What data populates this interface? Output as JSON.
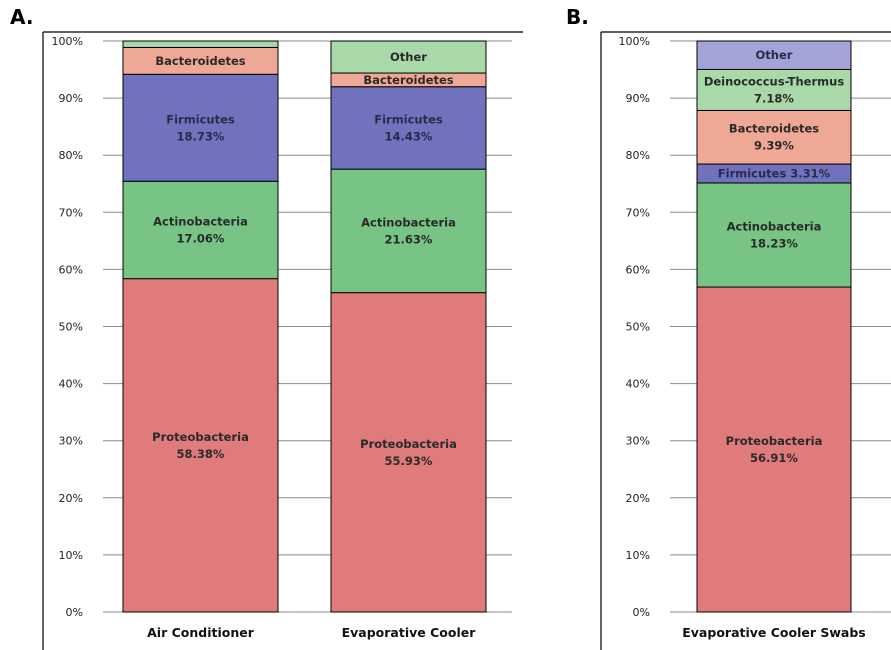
{
  "chart_data": [
    {
      "type": "bar",
      "stacked": true,
      "panel_label": "A.",
      "categories": [
        "Air Conditioner",
        "Evaporative Cooler"
      ],
      "yticks": [
        "0%",
        "10%",
        "20%",
        "30%",
        "40%",
        "50%",
        "60%",
        "70%",
        "80%",
        "90%",
        "100%"
      ],
      "ylim": [
        0,
        100
      ],
      "grid": true,
      "series": [
        {
          "name": "Proteobacteria",
          "color": "#e07b7b",
          "values": [
            58.38,
            55.93
          ],
          "labels": [
            [
              "Proteobacteria",
              "58.38%"
            ],
            [
              "Proteobacteria",
              "55.93%"
            ]
          ]
        },
        {
          "name": "Actinobacteria",
          "color": "#77c485",
          "values": [
            17.06,
            21.63
          ],
          "labels": [
            [
              "Actinobacteria",
              "17.06%"
            ],
            [
              "Actinobacteria",
              "21.63%"
            ]
          ]
        },
        {
          "name": "Firmicutes",
          "color": "#7072bd",
          "values": [
            18.73,
            14.43
          ],
          "labels": [
            [
              "Firmicutes",
              "18.73%"
            ],
            [
              "Firmicutes",
              "14.43%"
            ]
          ]
        },
        {
          "name": "Bacteroidetes",
          "color": "#f0a896",
          "values": [
            4.7,
            2.4
          ],
          "labels": [
            [
              "Bacteroidetes"
            ],
            [
              "Bacteroidetes"
            ]
          ]
        },
        {
          "name": "Other",
          "color": "#a9d9a8",
          "values": [
            1.13,
            5.61
          ],
          "labels": [
            [],
            [
              "Other"
            ]
          ]
        }
      ]
    },
    {
      "type": "bar",
      "stacked": true,
      "panel_label": "B.",
      "categories": [
        "Evaporative Cooler Swabs"
      ],
      "yticks": [
        "0%",
        "10%",
        "20%",
        "30%",
        "40%",
        "50%",
        "60%",
        "70%",
        "80%",
        "90%",
        "100%"
      ],
      "ylim": [
        0,
        100
      ],
      "grid": true,
      "series": [
        {
          "name": "Proteobacteria",
          "color": "#e07b7b",
          "values": [
            56.91
          ],
          "labels": [
            [
              "Proteobacteria",
              "56.91%"
            ]
          ]
        },
        {
          "name": "Actinobacteria",
          "color": "#77c485",
          "values": [
            18.23
          ],
          "labels": [
            [
              "Actinobacteria",
              "18.23%"
            ]
          ]
        },
        {
          "name": "Firmicutes",
          "color": "#7072bd",
          "values": [
            3.31
          ],
          "labels": [
            [
              "Firmicutes 3.31%"
            ]
          ]
        },
        {
          "name": "Bacteroidetes",
          "color": "#f0a896",
          "values": [
            9.39
          ],
          "labels": [
            [
              "Bacteroidetes",
              "9.39%"
            ]
          ]
        },
        {
          "name": "Deinococcus-Thermus",
          "color": "#a9d9a8",
          "values": [
            7.18
          ],
          "labels": [
            [
              "Deinococcus-Thermus",
              "7.18%"
            ]
          ]
        },
        {
          "name": "Other",
          "color": "#a3a3d8",
          "values": [
            4.98
          ],
          "labels": [
            [
              "Other"
            ]
          ]
        }
      ]
    }
  ]
}
